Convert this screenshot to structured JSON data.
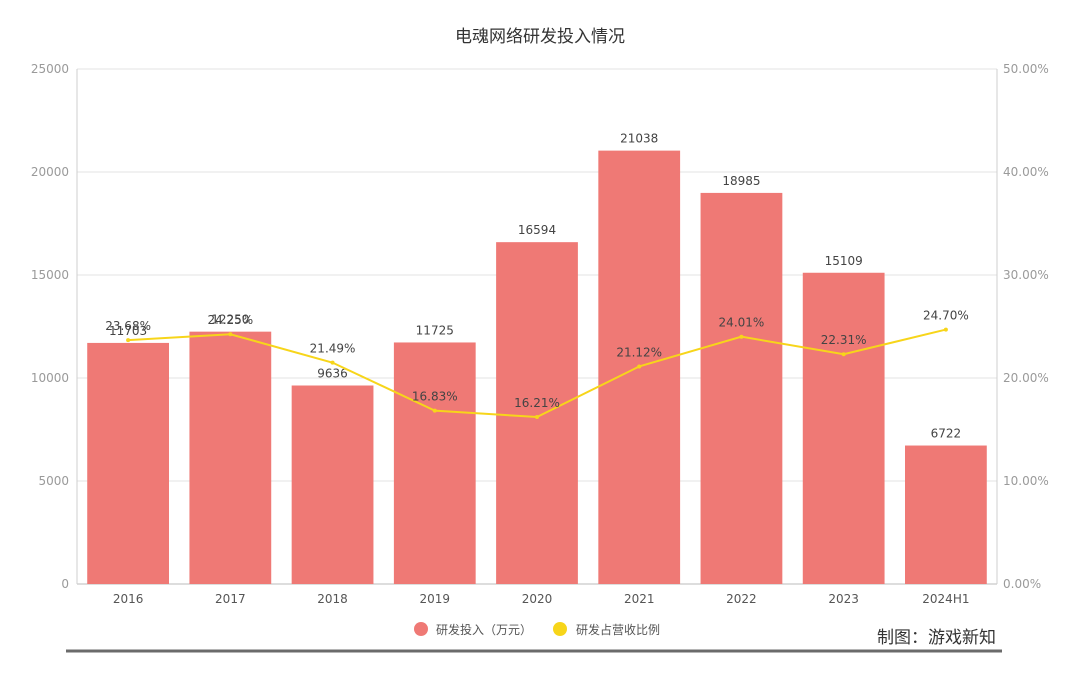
{
  "chart_data": {
    "type": "bar",
    "title": "电魂网络研发投入情况",
    "categories": [
      "2016",
      "2017",
      "2018",
      "2019",
      "2020",
      "2021",
      "2022",
      "2023",
      "2024H1"
    ],
    "series": [
      {
        "name": "研发投入（万元）",
        "type": "bar",
        "axis": "left",
        "values": [
          11703,
          12250,
          9636,
          11725,
          16594,
          21038,
          18985,
          15109,
          6722
        ],
        "labels": [
          "11703",
          "12250",
          "9636",
          "11725",
          "16594",
          "21038",
          "18985",
          "15109",
          "6722"
        ],
        "color": "#ef7975"
      },
      {
        "name": "研发占营收比例",
        "type": "line",
        "axis": "right",
        "values": [
          23.68,
          24.25,
          21.49,
          16.83,
          16.21,
          21.12,
          24.01,
          22.31,
          24.7
        ],
        "labels": [
          "23.68%",
          "24.25%",
          "21.49%",
          "16.83%",
          "16.21%",
          "21.12%",
          "24.01%",
          "22.31%",
          "24.70%"
        ],
        "color": "#f7d51a"
      }
    ],
    "yleft": {
      "min": 0,
      "max": 25000,
      "ticks": [
        "0",
        "5000",
        "10000",
        "15000",
        "20000",
        "25000"
      ]
    },
    "yright": {
      "min": 0,
      "max": 50,
      "ticks": [
        "0.00%",
        "10.00%",
        "20.00%",
        "30.00%",
        "40.00%",
        "50.00%"
      ]
    },
    "legend_position": "bottom-center",
    "grid": true
  },
  "credit": "制图：游戏新知"
}
